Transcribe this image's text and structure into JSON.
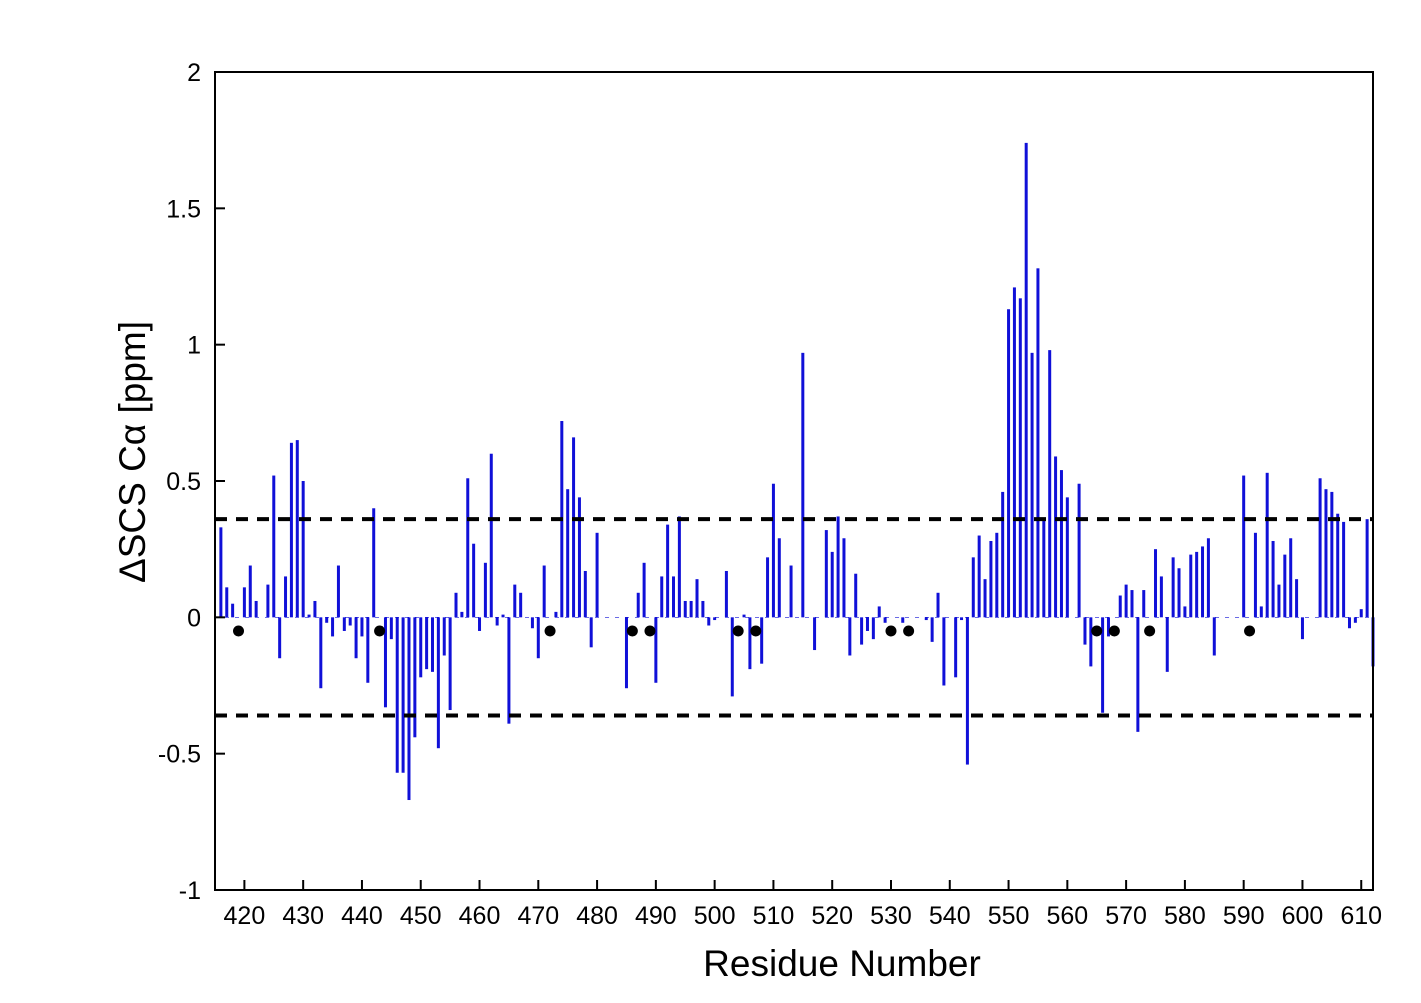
{
  "chart_data": {
    "type": "bar",
    "title": "",
    "xlabel": "Residue Number",
    "ylabel": "ΔSCS Cα [ppm]",
    "xlim": [
      415,
      612
    ],
    "ylim": [
      -1,
      2
    ],
    "x_ticks": [
      420,
      430,
      440,
      450,
      460,
      470,
      480,
      490,
      500,
      510,
      520,
      530,
      540,
      550,
      560,
      570,
      580,
      590,
      600,
      610
    ],
    "y_ticks": [
      -1,
      -0.5,
      0,
      0.5,
      1,
      1.5,
      2
    ],
    "y_tick_labels": [
      "-1",
      "-0.5",
      "0",
      "0.5",
      "1",
      "1.5",
      "2"
    ],
    "grid": false,
    "bar_color": "#1010d8",
    "threshold_lines": [
      0.36,
      -0.36
    ],
    "threshold_color": "#000000",
    "marker_y": -0.05,
    "marker_color": "#000000",
    "missing_residues": [
      419,
      443,
      472,
      486,
      489,
      504,
      507,
      530,
      533,
      565,
      568,
      574,
      591
    ],
    "x": [
      416,
      417,
      418,
      420,
      421,
      422,
      424,
      425,
      426,
      427,
      428,
      429,
      430,
      431,
      432,
      433,
      434,
      435,
      436,
      437,
      438,
      439,
      440,
      441,
      442,
      444,
      445,
      446,
      447,
      448,
      449,
      450,
      451,
      452,
      453,
      454,
      455,
      456,
      457,
      458,
      459,
      460,
      461,
      462,
      463,
      464,
      465,
      466,
      467,
      469,
      470,
      471,
      473,
      474,
      475,
      476,
      477,
      478,
      479,
      480,
      485,
      487,
      488,
      490,
      491,
      492,
      493,
      494,
      495,
      496,
      497,
      498,
      499,
      500,
      502,
      503,
      505,
      506,
      508,
      509,
      510,
      511,
      513,
      515,
      517,
      519,
      520,
      521,
      522,
      523,
      524,
      525,
      526,
      527,
      528,
      529,
      532,
      536,
      537,
      538,
      539,
      541,
      542,
      543,
      544,
      545,
      546,
      547,
      548,
      549,
      550,
      551,
      552,
      553,
      554,
      555,
      556,
      557,
      558,
      559,
      560,
      562,
      563,
      564,
      566,
      567,
      569,
      570,
      571,
      572,
      573,
      575,
      576,
      577,
      578,
      579,
      580,
      581,
      582,
      583,
      584,
      585,
      590,
      592,
      593,
      594,
      595,
      596,
      597,
      598,
      599,
      600,
      603,
      604,
      605,
      606,
      607,
      608,
      609,
      610,
      611,
      612
    ],
    "values": [
      0.33,
      0.11,
      0.05,
      0.11,
      0.19,
      0.06,
      0.12,
      0.52,
      -0.15,
      0.15,
      0.64,
      0.65,
      0.5,
      0.01,
      0.06,
      -0.26,
      -0.02,
      -0.07,
      0.19,
      -0.05,
      -0.03,
      -0.15,
      -0.07,
      -0.24,
      0.4,
      -0.33,
      -0.08,
      -0.57,
      -0.57,
      -0.67,
      -0.44,
      -0.22,
      -0.19,
      -0.2,
      -0.48,
      -0.14,
      -0.34,
      0.09,
      0.02,
      0.51,
      0.27,
      -0.05,
      0.2,
      0.6,
      -0.03,
      0.01,
      -0.39,
      0.12,
      0.09,
      -0.04,
      -0.15,
      0.19,
      0.02,
      0.72,
      0.47,
      0.66,
      0.44,
      0.17,
      -0.11,
      0.31,
      -0.26,
      0.09,
      0.2,
      -0.24,
      0.15,
      0.34,
      0.15,
      0.37,
      0.06,
      0.06,
      0.14,
      0.06,
      -0.03,
      -0.01,
      0.17,
      -0.29,
      0.01,
      -0.19,
      -0.17,
      0.22,
      0.49,
      0.29,
      0.19,
      0.97,
      -0.12,
      0.32,
      0.24,
      0.37,
      0.29,
      -0.14,
      0.16,
      -0.1,
      -0.05,
      -0.08,
      0.04,
      -0.02,
      -0.02,
      -0.01,
      -0.09,
      0.09,
      -0.25,
      -0.22,
      -0.01,
      -0.54,
      0.22,
      0.3,
      0.14,
      0.28,
      0.31,
      0.46,
      1.13,
      1.21,
      1.17,
      1.74,
      0.97,
      1.28,
      0.36,
      0.98,
      0.59,
      0.54,
      0.44,
      0.49,
      -0.1,
      -0.18,
      -0.35,
      -0.07,
      0.08,
      0.12,
      0.1,
      -0.42,
      0.1,
      0.25,
      0.15,
      -0.2,
      0.22,
      0.18,
      0.04,
      0.23,
      0.24,
      0.26,
      0.29,
      -0.14,
      0.52,
      0.31,
      0.04,
      0.53,
      0.28,
      0.12,
      0.23,
      0.29,
      0.14,
      -0.08,
      0.51,
      0.47,
      0.46,
      0.38,
      0.35,
      -0.04,
      -0.02,
      0.03,
      0.36,
      -0.18
    ]
  }
}
